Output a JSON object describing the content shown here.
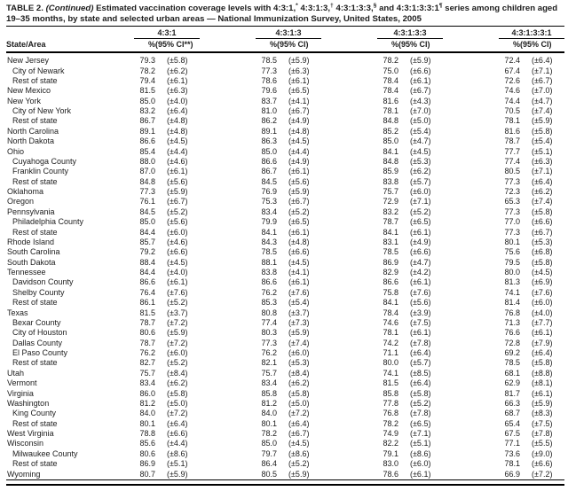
{
  "page": {
    "colors": {
      "background": "#ffffff",
      "text": "#1c1c1c",
      "rule": "#000000"
    }
  },
  "table": {
    "title": {
      "segments": [
        {
          "t": "TABLE 2. "
        },
        {
          "t": "(Continued)",
          "i": true
        },
        {
          "t": " Estimated vaccination coverage levels with 4:3:1,"
        },
        {
          "t": "*",
          "sup": true
        },
        {
          "t": " 4:3:1:3,"
        },
        {
          "t": "†",
          "sup": true
        },
        {
          "t": " 4:3:1:3:3,"
        },
        {
          "t": "§",
          "sup": true
        },
        {
          "t": " and 4:3:1:3:3:1"
        },
        {
          "t": "¶",
          "sup": true
        },
        {
          "t": " series among children aged 19–35 months, by state and selected urban areas — National Immunization Survey, United States, 2005"
        }
      ]
    },
    "row_header": "State/Area",
    "col_groups": [
      {
        "series": "4:3:1",
        "pct_label": "%",
        "ci_label": "(95% CI**)"
      },
      {
        "series": "4:3:1:3",
        "pct_label": "%",
        "ci_label": "(95% CI)"
      },
      {
        "series": "4:3:1:3:3",
        "pct_label": "%",
        "ci_label": "(95% CI)"
      },
      {
        "series": "4:3:1:3:3:1",
        "pct_label": "%",
        "ci_label": "(95% CI)"
      }
    ],
    "rows": [
      {
        "area": "New Jersey",
        "indent": false,
        "cells": [
          "79.3",
          "(±5.8)",
          "78.5",
          "(±5.9)",
          "78.2",
          "(±5.9)",
          "72.4",
          "(±6.4)"
        ]
      },
      {
        "area": "City of Newark",
        "indent": true,
        "cells": [
          "78.2",
          "(±6.2)",
          "77.3",
          "(±6.3)",
          "75.0",
          "(±6.6)",
          "67.4",
          "(±7.1)"
        ]
      },
      {
        "area": "Rest of state",
        "indent": true,
        "cells": [
          "79.4",
          "(±6.1)",
          "78.6",
          "(±6.1)",
          "78.4",
          "(±6.1)",
          "72.6",
          "(±6.7)"
        ]
      },
      {
        "area": "New Mexico",
        "indent": false,
        "cells": [
          "81.5",
          "(±6.3)",
          "79.6",
          "(±6.5)",
          "78.4",
          "(±6.7)",
          "74.6",
          "(±7.0)"
        ]
      },
      {
        "area": "New York",
        "indent": false,
        "cells": [
          "85.0",
          "(±4.0)",
          "83.7",
          "(±4.1)",
          "81.6",
          "(±4.3)",
          "74.4",
          "(±4.7)"
        ]
      },
      {
        "area": "City of New York",
        "indent": true,
        "cells": [
          "83.2",
          "(±6.4)",
          "81.0",
          "(±6.7)",
          "78.1",
          "(±7.0)",
          "70.5",
          "(±7.4)"
        ]
      },
      {
        "area": "Rest of state",
        "indent": true,
        "cells": [
          "86.7",
          "(±4.8)",
          "86.2",
          "(±4.9)",
          "84.8",
          "(±5.0)",
          "78.1",
          "(±5.9)"
        ]
      },
      {
        "area": "North Carolina",
        "indent": false,
        "cells": [
          "89.1",
          "(±4.8)",
          "89.1",
          "(±4.8)",
          "85.2",
          "(±5.4)",
          "81.6",
          "(±5.8)"
        ]
      },
      {
        "area": "North Dakota",
        "indent": false,
        "cells": [
          "86.6",
          "(±4.5)",
          "86.3",
          "(±4.5)",
          "85.0",
          "(±4.7)",
          "78.7",
          "(±5.4)"
        ]
      },
      {
        "area": "Ohio",
        "indent": false,
        "cells": [
          "85.4",
          "(±4.4)",
          "85.0",
          "(±4.4)",
          "84.1",
          "(±4.5)",
          "77.7",
          "(±5.1)"
        ]
      },
      {
        "area": "Cuyahoga County",
        "indent": true,
        "cells": [
          "88.0",
          "(±4.6)",
          "86.6",
          "(±4.9)",
          "84.8",
          "(±5.3)",
          "77.4",
          "(±6.3)"
        ]
      },
      {
        "area": "Franklin County",
        "indent": true,
        "cells": [
          "87.0",
          "(±6.1)",
          "86.7",
          "(±6.1)",
          "85.9",
          "(±6.2)",
          "80.5",
          "(±7.1)"
        ]
      },
      {
        "area": "Rest of state",
        "indent": true,
        "cells": [
          "84.8",
          "(±5.6)",
          "84.5",
          "(±5.6)",
          "83.8",
          "(±5.7)",
          "77.3",
          "(±6.4)"
        ]
      },
      {
        "area": "Oklahoma",
        "indent": false,
        "cells": [
          "77.3",
          "(±5.9)",
          "76.9",
          "(±5.9)",
          "75.7",
          "(±6.0)",
          "72.3",
          "(±6.2)"
        ]
      },
      {
        "area": "Oregon",
        "indent": false,
        "cells": [
          "76.1",
          "(±6.7)",
          "75.3",
          "(±6.7)",
          "72.9",
          "(±7.1)",
          "65.3",
          "(±7.4)"
        ]
      },
      {
        "area": "Pennsylvania",
        "indent": false,
        "cells": [
          "84.5",
          "(±5.2)",
          "83.4",
          "(±5.2)",
          "83.2",
          "(±5.2)",
          "77.3",
          "(±5.8)"
        ]
      },
      {
        "area": "Philadelphia County",
        "indent": true,
        "cells": [
          "85.0",
          "(±5.6)",
          "79.9",
          "(±6.5)",
          "78.7",
          "(±6.5)",
          "77.0",
          "(±6.6)"
        ]
      },
      {
        "area": "Rest of state",
        "indent": true,
        "cells": [
          "84.4",
          "(±6.0)",
          "84.1",
          "(±6.1)",
          "84.1",
          "(±6.1)",
          "77.3",
          "(±6.7)"
        ]
      },
      {
        "area": "Rhode Island",
        "indent": false,
        "cells": [
          "85.7",
          "(±4.6)",
          "84.3",
          "(±4.8)",
          "83.1",
          "(±4.9)",
          "80.1",
          "(±5.3)"
        ]
      },
      {
        "area": "South Carolina",
        "indent": false,
        "cells": [
          "79.2",
          "(±6.6)",
          "78.5",
          "(±6.6)",
          "78.5",
          "(±6.6)",
          "75.6",
          "(±6.8)"
        ]
      },
      {
        "area": "South Dakota",
        "indent": false,
        "cells": [
          "88.4",
          "(±4.5)",
          "88.1",
          "(±4.5)",
          "86.9",
          "(±4.7)",
          "79.5",
          "(±5.8)"
        ]
      },
      {
        "area": "Tennessee",
        "indent": false,
        "cells": [
          "84.4",
          "(±4.0)",
          "83.8",
          "(±4.1)",
          "82.9",
          "(±4.2)",
          "80.0",
          "(±4.5)"
        ]
      },
      {
        "area": "Davidson County",
        "indent": true,
        "cells": [
          "86.6",
          "(±6.1)",
          "86.6",
          "(±6.1)",
          "86.6",
          "(±6.1)",
          "81.3",
          "(±6.9)"
        ]
      },
      {
        "area": "Shelby County",
        "indent": true,
        "cells": [
          "76.4",
          "(±7.6)",
          "76.2",
          "(±7.6)",
          "75.8",
          "(±7.6)",
          "74.1",
          "(±7.6)"
        ]
      },
      {
        "area": "Rest of state",
        "indent": true,
        "cells": [
          "86.1",
          "(±5.2)",
          "85.3",
          "(±5.4)",
          "84.1",
          "(±5.6)",
          "81.4",
          "(±6.0)"
        ]
      },
      {
        "area": "Texas",
        "indent": false,
        "cells": [
          "81.5",
          "(±3.7)",
          "80.8",
          "(±3.7)",
          "78.4",
          "(±3.9)",
          "76.8",
          "(±4.0)"
        ]
      },
      {
        "area": "Bexar County",
        "indent": true,
        "cells": [
          "78.7",
          "(±7.2)",
          "77.4",
          "(±7.3)",
          "74.6",
          "(±7.5)",
          "71.3",
          "(±7.7)"
        ]
      },
      {
        "area": "City of Houston",
        "indent": true,
        "cells": [
          "80.6",
          "(±5.9)",
          "80.3",
          "(±5.9)",
          "78.1",
          "(±6.1)",
          "76.6",
          "(±6.1)"
        ]
      },
      {
        "area": "Dallas County",
        "indent": true,
        "cells": [
          "78.7",
          "(±7.2)",
          "77.3",
          "(±7.4)",
          "74.2",
          "(±7.8)",
          "72.8",
          "(±7.9)"
        ]
      },
      {
        "area": "El Paso County",
        "indent": true,
        "cells": [
          "76.2",
          "(±6.0)",
          "76.2",
          "(±6.0)",
          "71.1",
          "(±6.4)",
          "69.2",
          "(±6.4)"
        ]
      },
      {
        "area": "Rest of state",
        "indent": true,
        "cells": [
          "82.7",
          "(±5.2)",
          "82.1",
          "(±5.3)",
          "80.0",
          "(±5.7)",
          "78.5",
          "(±5.8)"
        ]
      },
      {
        "area": "Utah",
        "indent": false,
        "cells": [
          "75.7",
          "(±8.4)",
          "75.7",
          "(±8.4)",
          "74.1",
          "(±8.5)",
          "68.1",
          "(±8.8)"
        ]
      },
      {
        "area": "Vermont",
        "indent": false,
        "cells": [
          "83.4",
          "(±6.2)",
          "83.4",
          "(±6.2)",
          "81.5",
          "(±6.4)",
          "62.9",
          "(±8.1)"
        ]
      },
      {
        "area": "Virginia",
        "indent": false,
        "cells": [
          "86.0",
          "(±5.8)",
          "85.8",
          "(±5.8)",
          "85.8",
          "(±5.8)",
          "81.7",
          "(±6.1)"
        ]
      },
      {
        "area": "Washington",
        "indent": false,
        "cells": [
          "81.2",
          "(±5.0)",
          "81.2",
          "(±5.0)",
          "77.8",
          "(±5.2)",
          "66.3",
          "(±5.9)"
        ]
      },
      {
        "area": "King County",
        "indent": true,
        "cells": [
          "84.0",
          "(±7.2)",
          "84.0",
          "(±7.2)",
          "76.8",
          "(±7.8)",
          "68.7",
          "(±8.3)"
        ]
      },
      {
        "area": "Rest of state",
        "indent": true,
        "cells": [
          "80.1",
          "(±6.4)",
          "80.1",
          "(±6.4)",
          "78.2",
          "(±6.5)",
          "65.4",
          "(±7.5)"
        ]
      },
      {
        "area": "West Virginia",
        "indent": false,
        "cells": [
          "78.8",
          "(±6.6)",
          "78.2",
          "(±6.7)",
          "74.9",
          "(±7.1)",
          "67.5",
          "(±7.8)"
        ]
      },
      {
        "area": "Wisconsin",
        "indent": false,
        "cells": [
          "85.6",
          "(±4.4)",
          "85.0",
          "(±4.5)",
          "82.2",
          "(±5.1)",
          "77.1",
          "(±5.5)"
        ]
      },
      {
        "area": "Milwaukee County",
        "indent": true,
        "cells": [
          "80.6",
          "(±8.6)",
          "79.7",
          "(±8.6)",
          "79.1",
          "(±8.6)",
          "73.6",
          "(±9.0)"
        ]
      },
      {
        "area": "Rest of state",
        "indent": true,
        "cells": [
          "86.9",
          "(±5.1)",
          "86.4",
          "(±5.2)",
          "83.0",
          "(±6.0)",
          "78.1",
          "(±6.6)"
        ]
      },
      {
        "area": "Wyoming",
        "indent": false,
        "cells": [
          "80.7",
          "(±5.9)",
          "80.5",
          "(±5.9)",
          "78.6",
          "(±6.1)",
          "66.9",
          "(±7.2)"
        ]
      }
    ]
  }
}
